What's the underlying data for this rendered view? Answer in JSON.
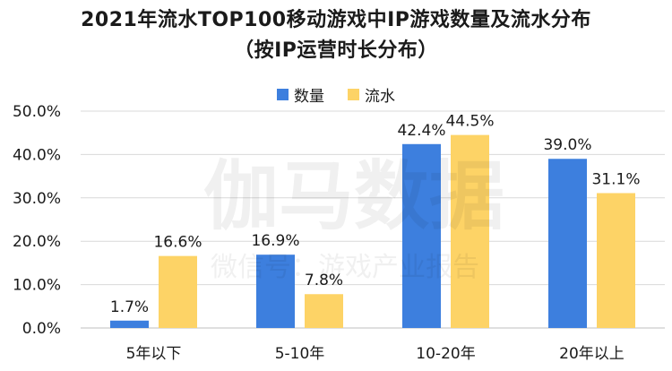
{
  "title_line1": "2021年流水TOP100移动游戏中IP游戏数量及流水分布",
  "title_line2": "（按IP运营时长分布）",
  "watermark": {
    "main": "伽马数据",
    "sub": "微信号：游戏产业报告"
  },
  "colors": {
    "count": "#3d7fde",
    "revenue": "#fdd366",
    "gridline": "#d9d9d9",
    "axis": "#bfbfbf"
  },
  "chart_data": {
    "type": "bar",
    "title": "2021年流水TOP100移动游戏中IP游戏数量及流水分布（按IP运营时长分布）",
    "categories": [
      "5年以下",
      "5-10年",
      "10-20年",
      "20年以上"
    ],
    "series": [
      {
        "name": "数量",
        "values": [
          1.7,
          16.9,
          42.4,
          39.0
        ],
        "labels": [
          "1.7%",
          "16.9%",
          "42.4%",
          "39.0%"
        ]
      },
      {
        "name": "流水",
        "values": [
          16.6,
          7.8,
          44.5,
          31.1
        ],
        "labels": [
          "16.6%",
          "7.8%",
          "44.5%",
          "31.1%"
        ]
      }
    ],
    "ylim": [
      0,
      50
    ],
    "yticks": [
      0,
      10,
      20,
      30,
      40,
      50
    ],
    "ytick_labels": [
      "0.0%",
      "10.0%",
      "20.0%",
      "30.0%",
      "40.0%",
      "50.0%"
    ],
    "xlabel": "",
    "ylabel": "",
    "legend": "top-center",
    "grid": true
  }
}
